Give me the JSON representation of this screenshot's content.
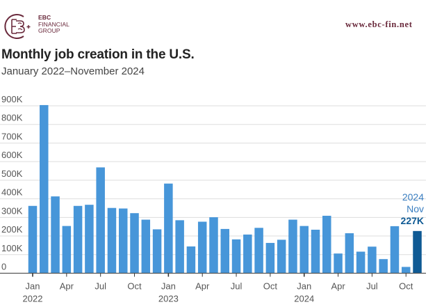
{
  "brand": {
    "name_line1": "EBC",
    "name_line2": "FINANCIAL",
    "name_line3": "GROUP",
    "website": "www.ebc-fin.net",
    "color": "#6a2a3c"
  },
  "colors": {
    "bar": "#4796d9",
    "bar_highlight": "#0f5a94",
    "grid": "#dddddd",
    "axis": "#555555"
  },
  "chart_data": {
    "type": "bar",
    "title": "Monthly job creation in the U.S.",
    "subtitle": "January 2022–November 2024",
    "xlabel": "",
    "ylabel": "",
    "ylim": [
      0,
      900000
    ],
    "grid": true,
    "yticks": [
      {
        "value": 0,
        "label": "0"
      },
      {
        "value": 100000,
        "label": "100K"
      },
      {
        "value": 200000,
        "label": "200K"
      },
      {
        "value": 300000,
        "label": "300K"
      },
      {
        "value": 400000,
        "label": "400K"
      },
      {
        "value": 500000,
        "label": "500K"
      },
      {
        "value": 600000,
        "label": "600K"
      },
      {
        "value": 700000,
        "label": "700K"
      },
      {
        "value": 800000,
        "label": "800K"
      },
      {
        "value": 900000,
        "label": "900K"
      }
    ],
    "categories": [
      "2022-01",
      "2022-02",
      "2022-03",
      "2022-04",
      "2022-05",
      "2022-06",
      "2022-07",
      "2022-08",
      "2022-09",
      "2022-10",
      "2022-11",
      "2022-12",
      "2023-01",
      "2023-02",
      "2023-03",
      "2023-04",
      "2023-05",
      "2023-06",
      "2023-07",
      "2023-08",
      "2023-09",
      "2023-10",
      "2023-11",
      "2023-12",
      "2024-01",
      "2024-02",
      "2024-03",
      "2024-04",
      "2024-05",
      "2024-06",
      "2024-07",
      "2024-08",
      "2024-09",
      "2024-10",
      "2024-11"
    ],
    "values": [
      362000,
      904000,
      413000,
      254000,
      362000,
      368000,
      569000,
      351000,
      348000,
      323000,
      288000,
      236000,
      482000,
      285000,
      144000,
      277000,
      301000,
      238000,
      182000,
      208000,
      244000,
      163000,
      180000,
      288000,
      254000,
      234000,
      309000,
      106000,
      215000,
      116000,
      143000,
      76000,
      253000,
      34000,
      227000
    ],
    "highlight_index": 34,
    "xticks": [
      {
        "index": 0,
        "label": "Jan",
        "year": "2022"
      },
      {
        "index": 3,
        "label": "Apr",
        "year": ""
      },
      {
        "index": 6,
        "label": "Jul",
        "year": ""
      },
      {
        "index": 9,
        "label": "Oct",
        "year": ""
      },
      {
        "index": 12,
        "label": "Jan",
        "year": "2023"
      },
      {
        "index": 15,
        "label": "Apr",
        "year": ""
      },
      {
        "index": 18,
        "label": "Jul",
        "year": ""
      },
      {
        "index": 21,
        "label": "Oct",
        "year": ""
      },
      {
        "index": 24,
        "label": "Jan",
        "year": "2024"
      },
      {
        "index": 27,
        "label": "Apr",
        "year": ""
      },
      {
        "index": 30,
        "label": "Jul",
        "year": ""
      },
      {
        "index": 33,
        "label": "Oct",
        "year": ""
      }
    ],
    "annotation": {
      "year": "2024",
      "month": "Nov",
      "value_label": "227K"
    }
  }
}
